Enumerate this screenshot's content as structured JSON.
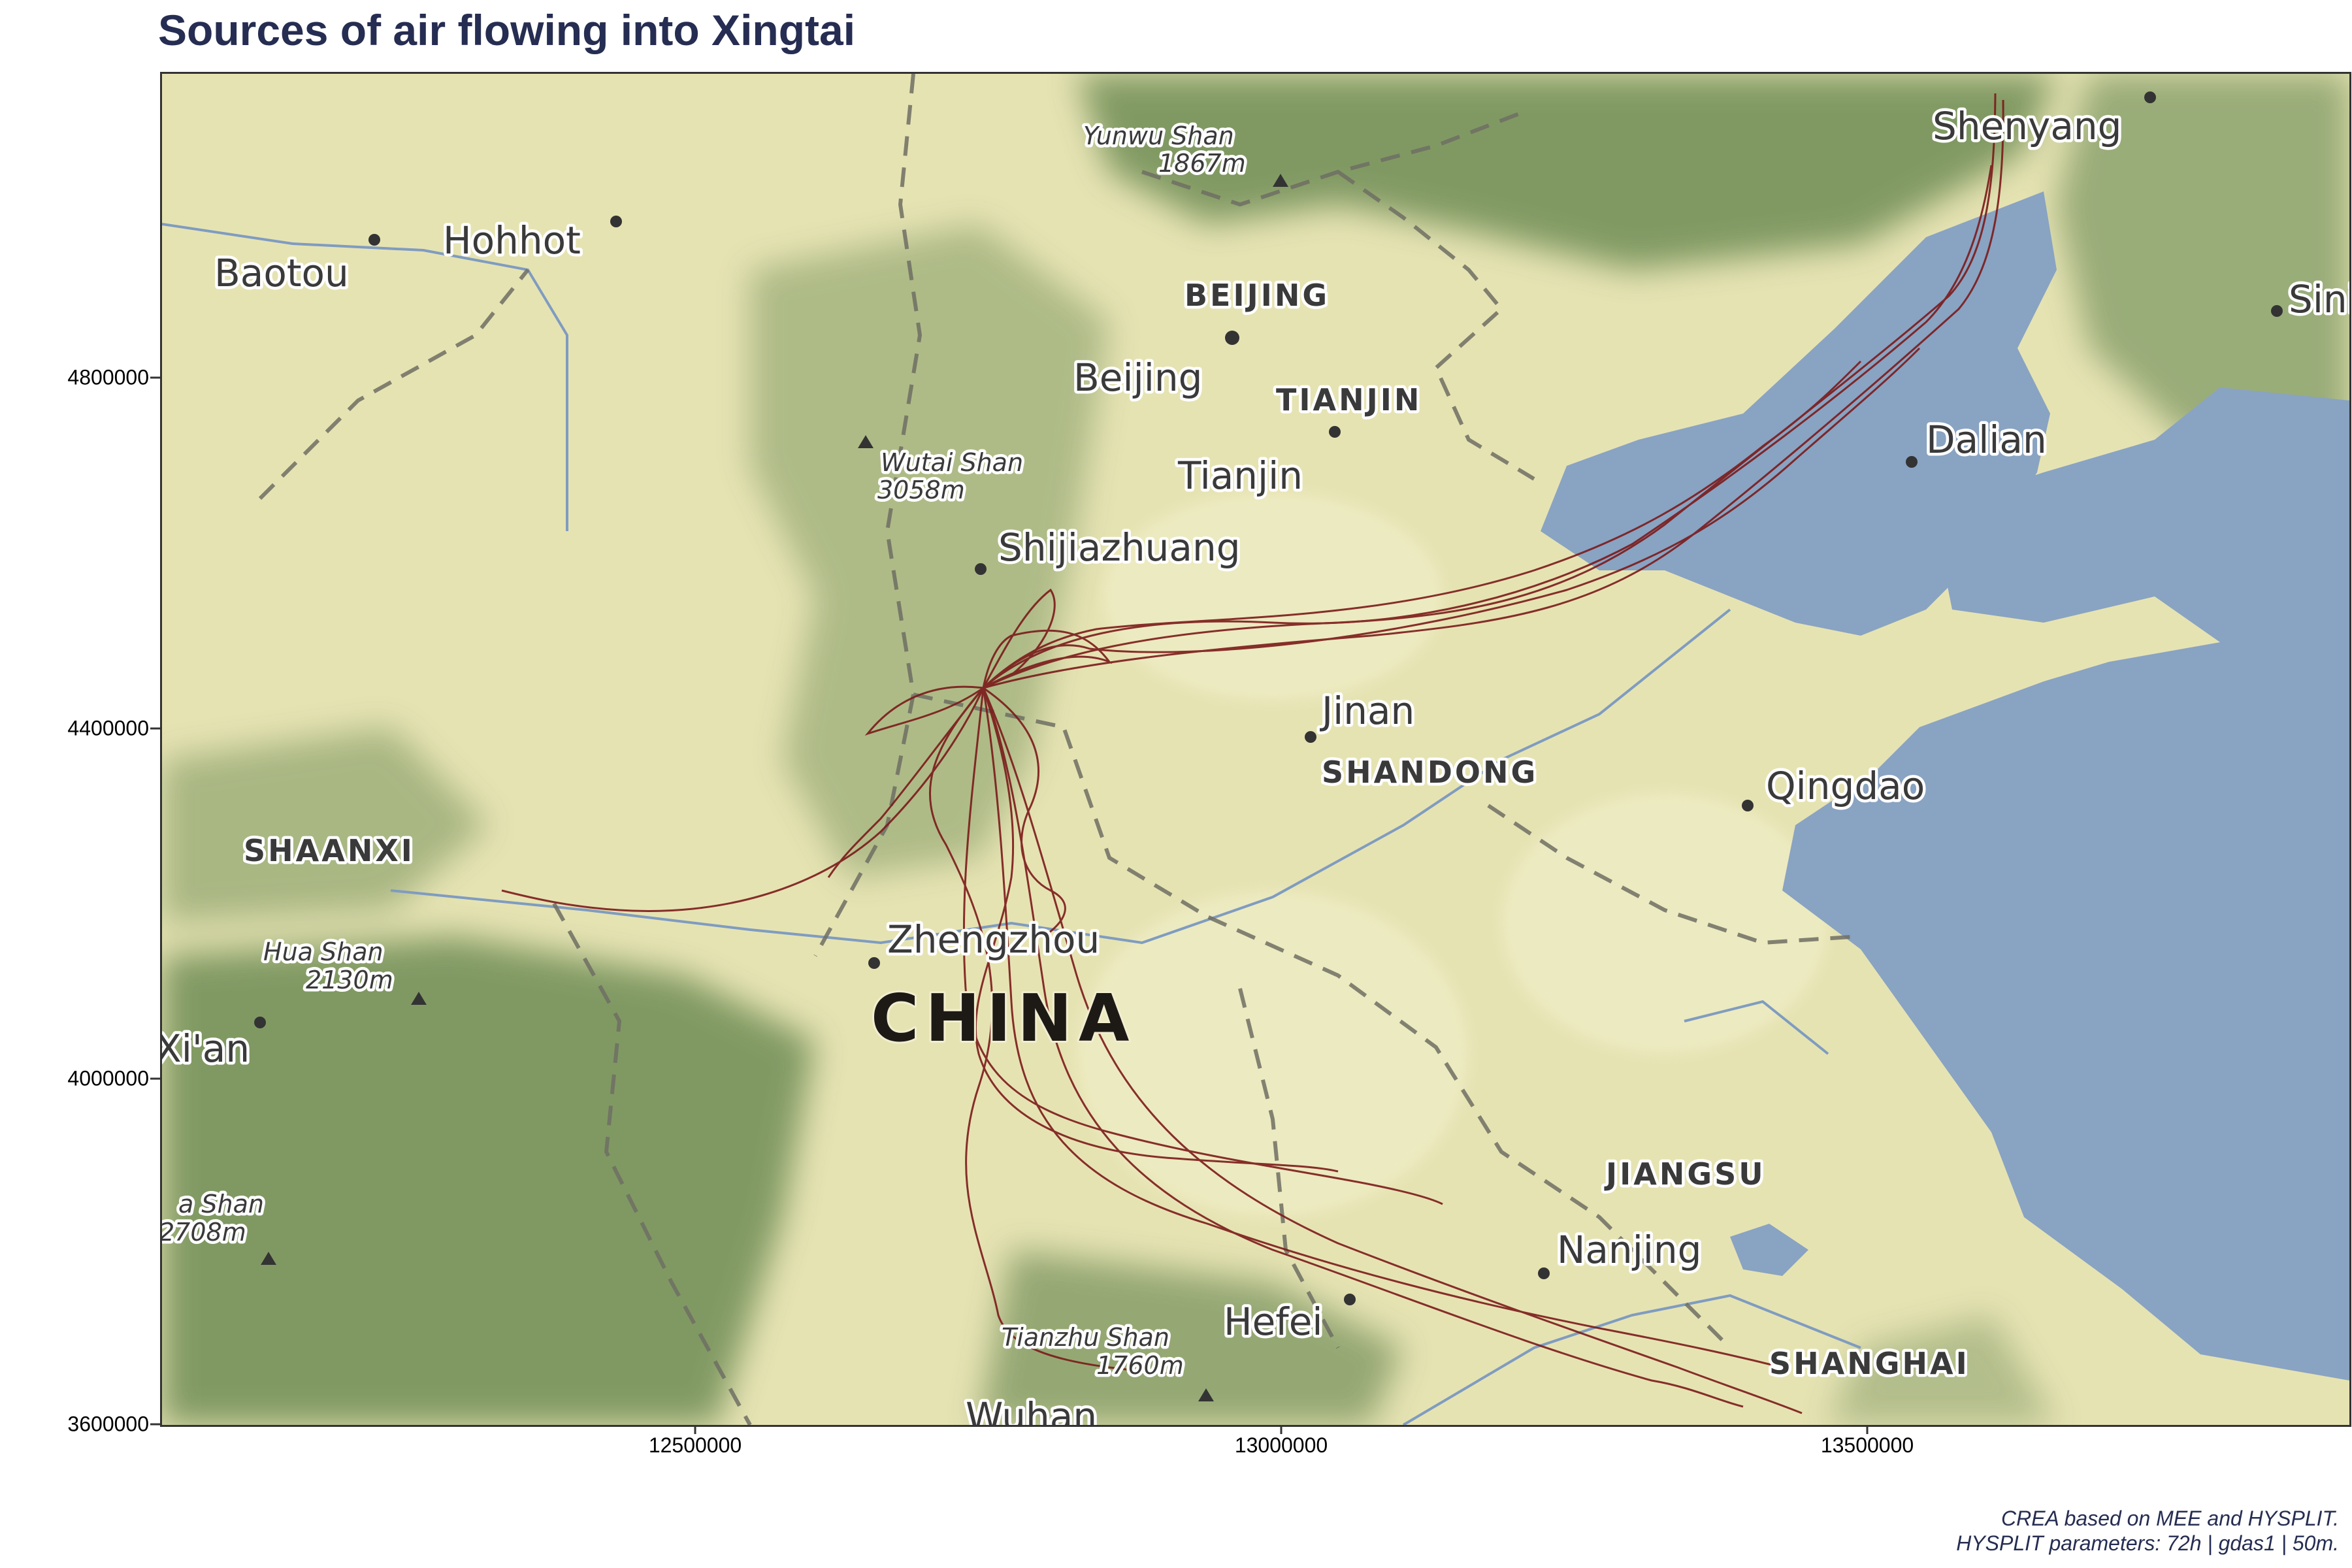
{
  "title": "Sources of air flowing into Xingtai",
  "caption": {
    "line1": "CREA based on MEE and HYSPLIT.",
    "line2": "HYSPLIT parameters: 72h | gdas1 | 50m."
  },
  "axes": {
    "x_ticks": [
      "12500000",
      "13000000",
      "13500000"
    ],
    "y_ticks": [
      "4800000",
      "4400000",
      "4000000",
      "3600000"
    ]
  },
  "map": {
    "projection_units": "web mercator meters",
    "x_range": [
      12050000,
      13920000
    ],
    "y_range": [
      3600000,
      5050000
    ],
    "trajectory_color": "#7b1a1a",
    "land_color": "#e6e3b3",
    "sea_color": "#89a3c2",
    "mountain_color": "#6b8a52",
    "labels": {
      "cities": [
        {
          "id": "shenyang",
          "text": "Shenyang",
          "lon_m": 13740000,
          "lat_m": 5020000
        },
        {
          "id": "hohhot",
          "text": "Hohhot",
          "lon_m": 12350000,
          "lat_m": 4910000
        },
        {
          "id": "baotou",
          "text": "Baotou",
          "lon_m": 12120000,
          "lat_m": 4880000
        },
        {
          "id": "beijing",
          "text": "Beijing",
          "lon_m": 12960000,
          "lat_m": 4820000
        },
        {
          "id": "tianjin",
          "text": "Tianjin",
          "lon_m": 13040000,
          "lat_m": 4740000
        },
        {
          "id": "dalian",
          "text": "Dalian",
          "lon_m": 13540000,
          "lat_m": 4710000
        },
        {
          "id": "shijiazhuang",
          "text": "Shijiazhuang",
          "lon_m": 12740000,
          "lat_m": 4660000
        },
        {
          "id": "jinan",
          "text": "Jinan",
          "lon_m": 13040000,
          "lat_m": 4410000
        },
        {
          "id": "qingdao",
          "text": "Qingdao",
          "lon_m": 13460000,
          "lat_m": 4320000
        },
        {
          "id": "zhengzhou",
          "text": "Zhengzhou",
          "lon_m": 12640000,
          "lat_m": 4140000
        },
        {
          "id": "xian",
          "text": "Xi'an",
          "lon_m": 12050000,
          "lat_m": 4030000
        },
        {
          "id": "nanjing",
          "text": "Nanjing",
          "lon_m": 13240000,
          "lat_m": 3770000
        },
        {
          "id": "hefei",
          "text": "Hefei",
          "lon_m": 13060000,
          "lat_m": 3690000
        },
        {
          "id": "wuhan",
          "text": "Wuhan",
          "lon_m": 12750000,
          "lat_m": 3600000
        },
        {
          "id": "sini",
          "text": "Sini",
          "lon_m": 13880000,
          "lat_m": 4880000
        }
      ],
      "provinces": [
        {
          "id": "beijing-prov",
          "text": "BEIJING"
        },
        {
          "id": "tianjin-prov",
          "text": "TIANJIN"
        },
        {
          "id": "shandong",
          "text": "SHANDONG"
        },
        {
          "id": "shaanxi",
          "text": "SHAANXI"
        },
        {
          "id": "jiangsu",
          "text": "JIANGSU"
        },
        {
          "id": "shanghai",
          "text": "SHANGHAI"
        }
      ],
      "country": "CHINA",
      "peaks": [
        {
          "id": "yunwu",
          "name": "Yunwu Shan",
          "elev": "1867m"
        },
        {
          "id": "wutai",
          "name": "Wutai Shan",
          "elev": "3058m"
        },
        {
          "id": "hua",
          "name": "Hua Shan",
          "elev": "2130m"
        },
        {
          "id": "tianzhu",
          "name": "Tianzhu Shan",
          "elev": "1760m"
        },
        {
          "id": "taibai",
          "name": "a Shan",
          "elev": "2708m"
        }
      ]
    }
  }
}
